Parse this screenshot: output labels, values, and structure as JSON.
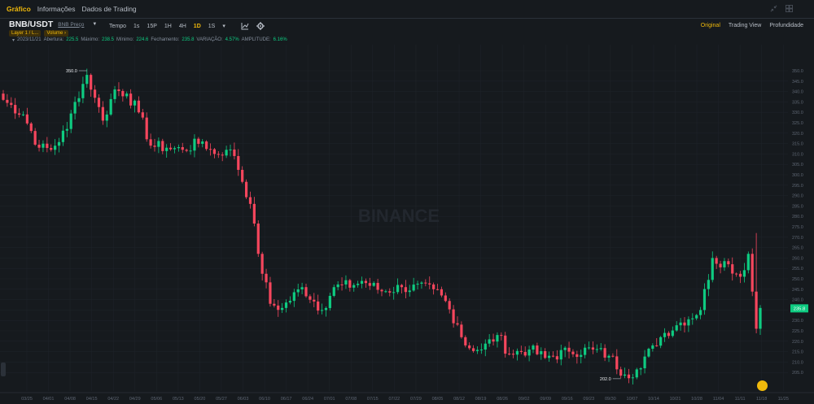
{
  "tabs": [
    "Gráfico",
    "Informações",
    "Dados de Trading"
  ],
  "symbol": "BNB/USDT",
  "symbol_sub": "BNB Preço",
  "badges": [
    "Layer 1 / L...",
    "Volume ›"
  ],
  "toolbar": {
    "label": "Tempo",
    "intervals": [
      "1s",
      "15P",
      "1H",
      "4H",
      "1D",
      "1S"
    ],
    "active": "1D"
  },
  "views": [
    "Original",
    "Trading View",
    "Profundidade"
  ],
  "ohlc": {
    "date": "2023/11/21",
    "open_label": "Abertura:",
    "open": "225.5",
    "high_label": "Máximo:",
    "high": "238.5",
    "low_label": "Mínimo:",
    "low": "224.6",
    "close_label": "Fechamento:",
    "close": "235.8",
    "change_label": "VARIAÇÃO:",
    "change": "4.57%",
    "amp_label": "AMPLITUDE:",
    "amp": "6.16%"
  },
  "watermark": "BINANCE",
  "colors": {
    "up": "#0ecb81",
    "down": "#f6465d",
    "accent": "#f0b90b",
    "bg": "#161a1e",
    "grid": "#1e2329"
  },
  "chart_data": {
    "type": "candlestick",
    "ylim": [
      200,
      350
    ],
    "y_ticks": [
      "350.0",
      "345.0",
      "340.0",
      "335.0",
      "330.0",
      "325.0",
      "320.0",
      "315.0",
      "310.0",
      "305.0",
      "300.0",
      "295.0",
      "290.0",
      "285.0",
      "280.0",
      "275.0",
      "270.0",
      "265.0",
      "260.0",
      "255.0",
      "250.0",
      "245.0",
      "240.0",
      "235.0",
      "230.0",
      "225.0",
      "220.0",
      "215.0",
      "210.0",
      "205.0"
    ],
    "x_ticks": [
      "03/25",
      "04/01",
      "04/08",
      "04/15",
      "04/22",
      "04/29",
      "05/06",
      "05/13",
      "05/20",
      "05/27",
      "06/03",
      "06/10",
      "06/17",
      "06/24",
      "07/01",
      "07/08",
      "07/15",
      "07/22",
      "07/29",
      "08/05",
      "08/12",
      "08/19",
      "08/26",
      "09/02",
      "09/09",
      "09/16",
      "09/23",
      "09/30",
      "10/07",
      "10/14",
      "10/21",
      "10/28",
      "11/04",
      "11/11",
      "11/18",
      "11/25"
    ],
    "last_price": "235.8",
    "annotations": [
      {
        "label": "350.0",
        "index": 21
      },
      {
        "label": "202.0",
        "index": 155
      }
    ],
    "close_anchors": [
      [
        0,
        336
      ],
      [
        5,
        329
      ],
      [
        9,
        313
      ],
      [
        12,
        312
      ],
      [
        16,
        322
      ],
      [
        18,
        335
      ],
      [
        21,
        348
      ],
      [
        23,
        337
      ],
      [
        25,
        326
      ],
      [
        28,
        341
      ],
      [
        31,
        339
      ],
      [
        34,
        330
      ],
      [
        37,
        314
      ],
      [
        41,
        313
      ],
      [
        45,
        312
      ],
      [
        50,
        316
      ],
      [
        53,
        310
      ],
      [
        56,
        312
      ],
      [
        58,
        309
      ],
      [
        62,
        286
      ],
      [
        64,
        262
      ],
      [
        67,
        238
      ],
      [
        70,
        236
      ],
      [
        75,
        246
      ],
      [
        80,
        235
      ],
      [
        83,
        246
      ],
      [
        88,
        247
      ],
      [
        90,
        249
      ],
      [
        95,
        244
      ],
      [
        100,
        246
      ],
      [
        108,
        245
      ],
      [
        110,
        242
      ],
      [
        114,
        228
      ],
      [
        116,
        218
      ],
      [
        120,
        216
      ],
      [
        124,
        223
      ],
      [
        127,
        214
      ],
      [
        132,
        216
      ],
      [
        136,
        212
      ],
      [
        142,
        215
      ],
      [
        148,
        216
      ],
      [
        152,
        213
      ],
      [
        156,
        204
      ],
      [
        160,
        207
      ],
      [
        163,
        218
      ],
      [
        166,
        224
      ],
      [
        170,
        229
      ],
      [
        175,
        235
      ],
      [
        178,
        260
      ],
      [
        182,
        257
      ],
      [
        185,
        251
      ],
      [
        187,
        262
      ],
      [
        189,
        226
      ],
      [
        190,
        236
      ]
    ],
    "highs_extra": [
      [
        21,
        350
      ],
      [
        155,
        202.5
      ],
      [
        189,
        272
      ]
    ]
  }
}
